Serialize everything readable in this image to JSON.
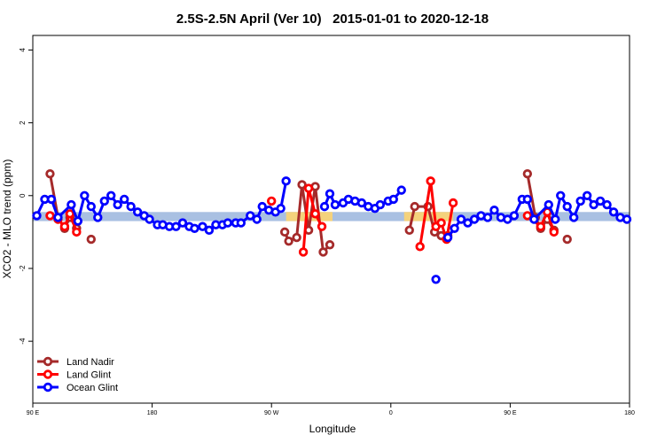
{
  "chart_data": {
    "type": "line",
    "title": "2.5S-2.5N April (Ver 10)   2015-01-01 to 2020-12-18",
    "x_label": "Longitude",
    "y_label": "XCO2 - MLO trend (ppm)",
    "xlim": [
      90,
      540
    ],
    "ylim": [
      -5.7,
      4.4
    ],
    "xticks": [
      {
        "value": 90,
        "label": "90 E"
      },
      180,
      {
        "value": 270,
        "label": "90 W"
      },
      {
        "value": 360,
        "label": "0"
      },
      {
        "value": 450,
        "label": "90 E"
      },
      {
        "value": 540,
        "label": "180"
      }
    ],
    "yticks": [
      -4,
      -2,
      0,
      2,
      4
    ],
    "legend": "bottom-left",
    "band": {
      "lower": -0.7,
      "upper": -0.45,
      "color": "#a9c0e2"
    },
    "highlights": [
      {
        "from": 281,
        "to": 316,
        "color": "#f4d27c"
      },
      {
        "from": 370,
        "to": 407,
        "color": "#f4d27c"
      }
    ],
    "series": [
      {
        "name": "Land Nadir",
        "color": "#a52a2a",
        "x": [
          103,
          109,
          114,
          118,
          123,
          null,
          134,
          null,
          280,
          283,
          289,
          293,
          298,
          303,
          309,
          314,
          null,
          374,
          378,
          388,
          393,
          398,
          403,
          null,
          463,
          469,
          473,
          478,
          483,
          null,
          493
        ],
        "values": [
          0.6,
          -0.6,
          -0.9,
          -0.6,
          -0.9,
          null,
          -1.2,
          null,
          -1.0,
          -1.25,
          -1.15,
          0.3,
          -0.95,
          0.25,
          -1.55,
          -1.35,
          null,
          -0.95,
          -0.3,
          -0.3,
          -1.0,
          -1.1,
          -1.1,
          null,
          0.6,
          -0.6,
          -0.9,
          -0.65,
          -0.95,
          null,
          -1.2
        ]
      },
      {
        "name": "Land Glint",
        "color": "#ff0000",
        "x": [
          103,
          109,
          114,
          118,
          123,
          null,
          270,
          null,
          294,
          298,
          303,
          308,
          null,
          382,
          390,
          394,
          398,
          402,
          407,
          null,
          463,
          473,
          478,
          483
        ],
        "values": [
          -0.55,
          -0.65,
          -0.85,
          -0.5,
          -1.0,
          null,
          -0.15,
          null,
          -1.55,
          0.2,
          -0.5,
          -0.85,
          null,
          -1.4,
          0.4,
          -0.85,
          -0.75,
          -1.2,
          -0.2,
          null,
          -0.55,
          -0.85,
          -0.45,
          -1.0
        ]
      },
      {
        "name": "Ocean Glint",
        "color": "#0000ff",
        "x": [
          93,
          99,
          104,
          109,
          119,
          124,
          129,
          134,
          139,
          144,
          149,
          154,
          159,
          164,
          169,
          174,
          178,
          184,
          188,
          193,
          198,
          203,
          208,
          212,
          218,
          223,
          228,
          233,
          237,
          243,
          247,
          254,
          259,
          263,
          268,
          273,
          277,
          281,
          null,
          310,
          314,
          318,
          324,
          328,
          333,
          338,
          343,
          348,
          352,
          358,
          362,
          368,
          null,
          394,
          null,
          403,
          408,
          413,
          418,
          423,
          428,
          433,
          438,
          443,
          448,
          453,
          459,
          463,
          468,
          479,
          484,
          488,
          493,
          498,
          503,
          508,
          513,
          518,
          523,
          528,
          533,
          538
        ],
        "values": [
          -0.55,
          -0.1,
          -0.1,
          -0.6,
          -0.25,
          -0.7,
          0.0,
          -0.3,
          -0.6,
          -0.15,
          0.0,
          -0.25,
          -0.1,
          -0.3,
          -0.45,
          -0.55,
          -0.65,
          -0.8,
          -0.8,
          -0.85,
          -0.85,
          -0.75,
          -0.85,
          -0.9,
          -0.85,
          -0.95,
          -0.8,
          -0.8,
          -0.75,
          -0.75,
          -0.75,
          -0.55,
          -0.65,
          -0.3,
          -0.4,
          -0.45,
          -0.35,
          0.4,
          null,
          -0.3,
          0.05,
          -0.25,
          -0.2,
          -0.1,
          -0.15,
          -0.2,
          -0.3,
          -0.35,
          -0.25,
          -0.15,
          -0.1,
          0.15,
          null,
          -2.3,
          null,
          -1.15,
          -0.9,
          -0.65,
          -0.75,
          -0.65,
          -0.55,
          -0.6,
          -0.4,
          -0.6,
          -0.65,
          -0.55,
          -0.1,
          -0.1,
          -0.65,
          -0.25,
          -0.65,
          0.0,
          -0.3,
          -0.6,
          -0.15,
          0.0,
          -0.25,
          -0.15,
          -0.25,
          -0.45,
          -0.6,
          -0.65
        ]
      }
    ]
  }
}
